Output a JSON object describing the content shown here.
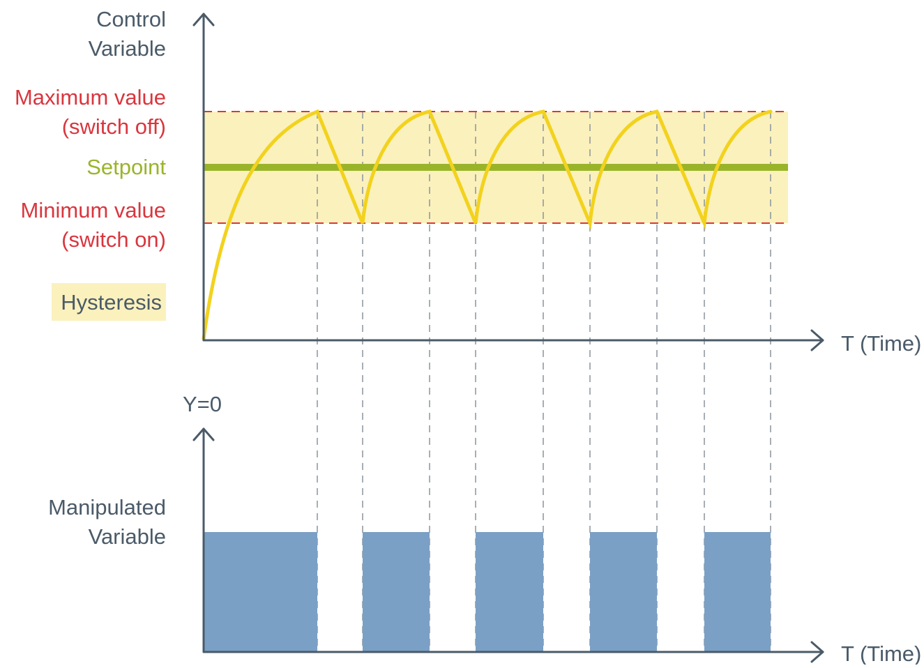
{
  "top_chart": {
    "y_label_line1": "Control",
    "y_label_line2": "Variable",
    "max_label_line1": "Maximum value",
    "max_label_line2": "(switch off)",
    "setpoint_label": "Setpoint",
    "min_label_line1": "Minimum value",
    "min_label_line2": "(switch on)",
    "legend_label": "Hysteresis",
    "x_label": "T (Time)"
  },
  "bottom_chart": {
    "y_top_label": "Y=0",
    "y_label_line1": "Manipulated",
    "y_label_line2": "Variable",
    "x_label": "T (Time)"
  },
  "colors": {
    "axis": "#4a5a68",
    "text": "#4a5a68",
    "limit_red": "#d9363e",
    "setpoint_green": "#9ab42a",
    "curve_yellow": "#f2d21d",
    "hysteresis_band": "#fbf1bd",
    "bars_blue": "#7ba0c5",
    "guide_gray": "#8a949c"
  },
  "chart_data": {
    "type": "line",
    "series_control": {
      "switch_off_times": [
        1,
        3,
        5,
        7,
        9
      ],
      "switch_on_times": [
        0,
        1.4,
        3.4,
        5.4,
        7.4
      ],
      "end_time": 9,
      "levels": {
        "start": 0,
        "minimum": 1,
        "setpoint": 1.5,
        "maximum": 2
      }
    },
    "series_manipulated": {
      "on_intervals": [
        [
          0,
          1
        ],
        [
          1.4,
          2.0
        ],
        [
          2.4,
          3.0
        ],
        [
          3.4,
          4.0
        ],
        [
          4.4,
          5.0
        ]
      ]
    }
  }
}
